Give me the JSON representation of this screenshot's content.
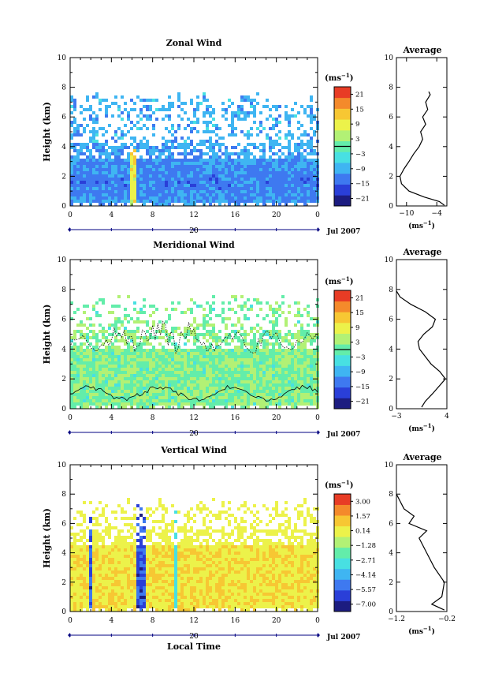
{
  "chart_data": [
    {
      "type": "heatmap",
      "title": "Zonal Wind",
      "ylabel": "Height (km)",
      "ylim": [
        0,
        10
      ],
      "yticks": [
        "0",
        "2",
        "4",
        "6",
        "8",
        "10"
      ],
      "xlim": [
        0,
        24
      ],
      "xticks": [
        "0",
        "4",
        "8",
        "12",
        "16",
        "20",
        "0"
      ],
      "date_tick": "20",
      "date_label": "Jul 2007",
      "colorbar": {
        "unit": "(ms",
        "unit_sup": "−1",
        "unit_close": ")",
        "labels": [
          "21",
          "15",
          "9",
          "3",
          "−3",
          "−9",
          "−15",
          "−21"
        ],
        "range": [
          -24,
          24
        ]
      },
      "field_model": {
        "base": -9,
        "amp": 3,
        "top_km": 7.7,
        "transition": 3.2
      },
      "average": {
        "title": "Average",
        "xlabel": "(ms",
        "xlabel_sup": "−1",
        "xlabel_close": ")",
        "xticks": [
          "−10",
          "−4"
        ],
        "xlim": [
          -12,
          -2
        ],
        "ylim": [
          0,
          10
        ],
        "yticks": [
          "0",
          "2",
          "4",
          "6",
          "8",
          "10"
        ],
        "profile": [
          {
            "x": -2.5,
            "y": 0.05
          },
          {
            "x": -3.5,
            "y": 0.3
          },
          {
            "x": -6.5,
            "y": 0.6
          },
          {
            "x": -9.5,
            "y": 1.0
          },
          {
            "x": -11.0,
            "y": 1.5
          },
          {
            "x": -11.3,
            "y": 2.0
          },
          {
            "x": -10.5,
            "y": 2.5
          },
          {
            "x": -9.5,
            "y": 3.0
          },
          {
            "x": -8.6,
            "y": 3.5
          },
          {
            "x": -7.5,
            "y": 4.0
          },
          {
            "x": -6.8,
            "y": 4.5
          },
          {
            "x": -7.2,
            "y": 5.0
          },
          {
            "x": -6.2,
            "y": 5.5
          },
          {
            "x": -6.8,
            "y": 6.0
          },
          {
            "x": -5.8,
            "y": 6.5
          },
          {
            "x": -6.2,
            "y": 7.0
          },
          {
            "x": -5.3,
            "y": 7.5
          },
          {
            "x": -5.6,
            "y": 7.7
          }
        ]
      }
    },
    {
      "type": "heatmap",
      "title": "Meridional Wind",
      "ylabel": "Height (km)",
      "ylim": [
        0,
        10
      ],
      "yticks": [
        "0",
        "2",
        "4",
        "6",
        "8",
        "10"
      ],
      "xlim": [
        0,
        24
      ],
      "xticks": [
        "0",
        "4",
        "8",
        "12",
        "16",
        "20",
        "0"
      ],
      "date_tick": "20",
      "date_label": "Jul 2007",
      "colorbar": {
        "unit": "(ms",
        "unit_sup": "−1",
        "unit_close": ")",
        "labels": [
          "21",
          "15",
          "9",
          "3",
          "−3",
          "−9",
          "−15",
          "−21"
        ],
        "range": [
          -24,
          24
        ]
      },
      "field_model": {
        "base": 1.5,
        "amp": 4,
        "top_km": 7.8,
        "transition": 4.2
      },
      "average": {
        "title": "Average",
        "xlabel": "(ms",
        "xlabel_sup": "−1",
        "xlabel_close": ")",
        "xticks": [
          "−3",
          "4"
        ],
        "xlim": [
          -3,
          4
        ],
        "ylim": [
          0,
          10
        ],
        "yticks": [
          "0",
          "2",
          "4",
          "6",
          "8",
          "10"
        ],
        "profile": [
          {
            "x": 0.5,
            "y": 0.1
          },
          {
            "x": 1.0,
            "y": 0.5
          },
          {
            "x": 2.0,
            "y": 1.0
          },
          {
            "x": 3.8,
            "y": 2.0
          },
          {
            "x": 3.0,
            "y": 2.5
          },
          {
            "x": 1.8,
            "y": 3.0
          },
          {
            "x": 1.0,
            "y": 3.5
          },
          {
            "x": 0.2,
            "y": 4.0
          },
          {
            "x": 0.0,
            "y": 4.5
          },
          {
            "x": 0.8,
            "y": 5.0
          },
          {
            "x": 2.0,
            "y": 5.5
          },
          {
            "x": 2.4,
            "y": 6.0
          },
          {
            "x": 1.0,
            "y": 6.5
          },
          {
            "x": -1.0,
            "y": 7.0
          },
          {
            "x": -2.5,
            "y": 7.5
          },
          {
            "x": -3.0,
            "y": 7.9
          }
        ]
      }
    },
    {
      "type": "heatmap",
      "title": "Vertical Wind",
      "ylabel": "Height (km)",
      "xlabel": "Local Time",
      "ylim": [
        0,
        10
      ],
      "yticks": [
        "0",
        "2",
        "4",
        "6",
        "8",
        "10"
      ],
      "xlim": [
        0,
        24
      ],
      "xticks": [
        "0",
        "4",
        "8",
        "12",
        "16",
        "20",
        "0"
      ],
      "date_tick": "20",
      "date_label": "Jul 2007",
      "colorbar": {
        "unit": "(ms",
        "unit_sup": "−1",
        "unit_close": ")",
        "labels": [
          "3.00",
          "1.57",
          "0.14",
          "−1.28",
          "−2.71",
          "−4.14",
          "−5.57",
          "−7.00"
        ],
        "range": [
          -8,
          4
        ]
      },
      "field_model": {
        "base": 0.6,
        "amp": 0.6,
        "top_km": 7.9,
        "transition": 4.6
      },
      "average": {
        "title": "Average",
        "xlabel": "(ms",
        "xlabel_sup": "−1",
        "xlabel_close": ")",
        "xticks": [
          "−1.2",
          "−0.2"
        ],
        "xlim": [
          -1.2,
          -0.2
        ],
        "ylim": [
          0,
          10
        ],
        "yticks": [
          "0",
          "2",
          "4",
          "6",
          "8",
          "10"
        ],
        "profile": [
          {
            "x": -0.25,
            "y": 0.1
          },
          {
            "x": -0.5,
            "y": 0.5
          },
          {
            "x": -0.3,
            "y": 1.0
          },
          {
            "x": -0.25,
            "y": 2.0
          },
          {
            "x": -0.45,
            "y": 3.0
          },
          {
            "x": -0.6,
            "y": 4.0
          },
          {
            "x": -0.75,
            "y": 5.0
          },
          {
            "x": -0.6,
            "y": 5.5
          },
          {
            "x": -0.95,
            "y": 6.0
          },
          {
            "x": -0.85,
            "y": 6.5
          },
          {
            "x": -1.05,
            "y": 7.0
          },
          {
            "x": -1.2,
            "y": 8.0
          }
        ]
      }
    }
  ],
  "colors": {
    "scale": [
      "#1c1c80",
      "#2a3fd8",
      "#3e79f0",
      "#3fb5f2",
      "#48e0e2",
      "#63edaa",
      "#b2f175",
      "#ecf24a",
      "#f7c733",
      "#f48a2b",
      "#e83c25"
    ],
    "contour": "#000000",
    "axis": "#000000",
    "date_line": "#000080"
  }
}
